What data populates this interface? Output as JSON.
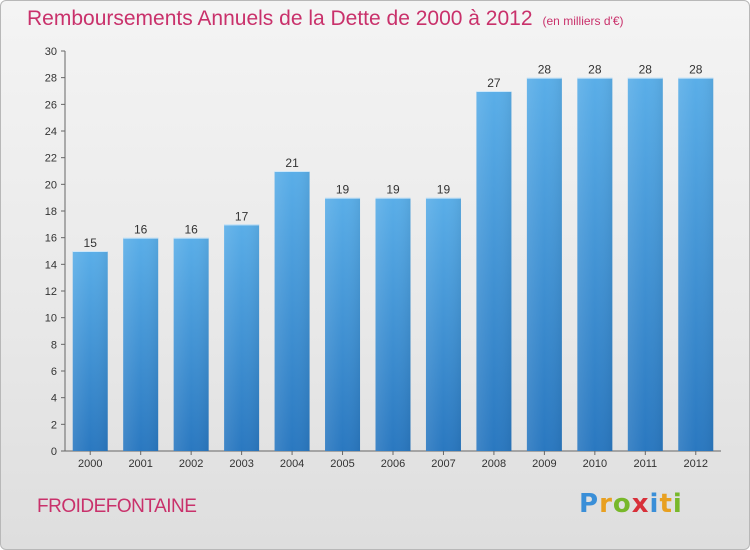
{
  "header": {
    "title": "Remboursements Annuels de la Dette de 2000 à 2012",
    "subtitle": "(en milliers d'€)"
  },
  "footer": {
    "commune": "FROIDEFONTAINE",
    "logo_text": "Proxiti"
  },
  "colors": {
    "title": "#c9316b",
    "bar_top": "#5aaee8",
    "bar_bottom": "#2a78c0"
  },
  "chart_data": {
    "type": "bar",
    "title": "Remboursements Annuels de la Dette de 2000 à 2012",
    "subtitle": "(en milliers d'€)",
    "categories": [
      "2000",
      "2001",
      "2002",
      "2003",
      "2004",
      "2005",
      "2006",
      "2007",
      "2008",
      "2009",
      "2010",
      "2011",
      "2012"
    ],
    "values": [
      15,
      16,
      16,
      17,
      21,
      19,
      19,
      19,
      27,
      28,
      28,
      28,
      28
    ],
    "xlabel": "",
    "ylabel": "",
    "ylim": [
      0,
      30
    ],
    "yticks": [
      0,
      2,
      4,
      6,
      8,
      10,
      12,
      14,
      16,
      18,
      20,
      22,
      24,
      26,
      28,
      30
    ],
    "grid": false,
    "legend": "none"
  }
}
